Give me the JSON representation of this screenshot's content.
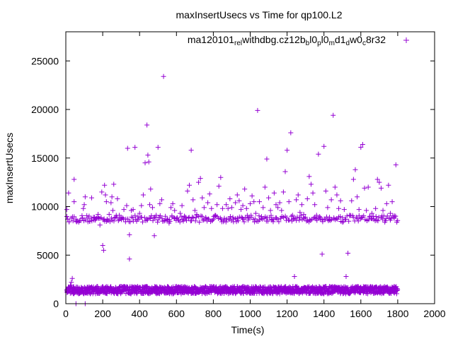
{
  "colors": {
    "series": "#9400d3",
    "axis": "#000000",
    "background": "#ffffff"
  },
  "chart_data": {
    "type": "scatter",
    "title": "maxInsertUsecs vs Time for qp100.L2",
    "xlabel": "Time(s)",
    "ylabel": "maxInsertUsecs",
    "xlim": [
      0,
      2000
    ],
    "ylim": [
      0,
      28000
    ],
    "xticks": [
      0,
      200,
      400,
      600,
      800,
      1000,
      1200,
      1400,
      1600,
      1800,
      2000
    ],
    "yticks": [
      0,
      5000,
      10000,
      15000,
      20000,
      25000
    ],
    "grid": false,
    "legend_position": "top-right",
    "marker": "plus",
    "series": [
      {
        "name": "ma120101_rel_withdbg.cz12b_bl0_pl0_md1_dw0_c8r32",
        "legend_parts": [
          {
            "t": "ma120101",
            "s": "n"
          },
          {
            "t": "rel",
            "s": "sub"
          },
          {
            "t": "withdbg.cz12b",
            "s": "n"
          },
          {
            "t": "b",
            "s": "sub"
          },
          {
            "t": "l0",
            "s": "n"
          },
          {
            "t": "p",
            "s": "sub"
          },
          {
            "t": "l0",
            "s": "n"
          },
          {
            "t": "m",
            "s": "sub"
          },
          {
            "t": "d1",
            "s": "n"
          },
          {
            "t": "d",
            "s": "sub"
          },
          {
            "t": "w0",
            "s": "n"
          },
          {
            "t": "c",
            "s": "sub"
          },
          {
            "t": "8r32",
            "s": "n"
          }
        ],
        "points": [
          [
            5,
            1450
          ],
          [
            5,
            9700
          ],
          [
            10,
            8700
          ],
          [
            15,
            11400
          ],
          [
            25,
            1900
          ],
          [
            30,
            2200
          ],
          [
            35,
            2600
          ],
          [
            40,
            1050
          ],
          [
            45,
            12800
          ],
          [
            45,
            10500
          ],
          [
            55,
            8700
          ],
          [
            55,
            0
          ],
          [
            70,
            8400
          ],
          [
            90,
            8800
          ],
          [
            95,
            9800
          ],
          [
            100,
            10200
          ],
          [
            105,
            11000
          ],
          [
            105,
            0
          ],
          [
            120,
            8800
          ],
          [
            130,
            8500
          ],
          [
            140,
            10900
          ],
          [
            150,
            8900
          ],
          [
            160,
            8600
          ],
          [
            175,
            9200
          ],
          [
            185,
            8100
          ],
          [
            195,
            11500
          ],
          [
            200,
            6000
          ],
          [
            205,
            5500
          ],
          [
            210,
            12200
          ],
          [
            215,
            11200
          ],
          [
            220,
            10500
          ],
          [
            225,
            8600
          ],
          [
            235,
            9200
          ],
          [
            245,
            10400
          ],
          [
            250,
            11000
          ],
          [
            255,
            9600
          ],
          [
            260,
            12300
          ],
          [
            270,
            8900
          ],
          [
            280,
            10800
          ],
          [
            290,
            9100
          ],
          [
            300,
            8900
          ],
          [
            315,
            9700
          ],
          [
            330,
            10100
          ],
          [
            335,
            16000
          ],
          [
            345,
            4600
          ],
          [
            345,
            7100
          ],
          [
            355,
            9600
          ],
          [
            365,
            9700
          ],
          [
            375,
            16100
          ],
          [
            390,
            8700
          ],
          [
            400,
            9300
          ],
          [
            410,
            10100
          ],
          [
            420,
            11200
          ],
          [
            430,
            14500
          ],
          [
            440,
            18400
          ],
          [
            445,
            15300
          ],
          [
            450,
            14600
          ],
          [
            455,
            10200
          ],
          [
            460,
            11800
          ],
          [
            470,
            9900
          ],
          [
            480,
            7000
          ],
          [
            490,
            9100
          ],
          [
            500,
            16100
          ],
          [
            510,
            10300
          ],
          [
            520,
            10700
          ],
          [
            530,
            23400
          ],
          [
            540,
            9000
          ],
          [
            550,
            8700
          ],
          [
            560,
            8300
          ],
          [
            570,
            9900
          ],
          [
            580,
            10300
          ],
          [
            590,
            9600
          ],
          [
            600,
            8800
          ],
          [
            610,
            8600
          ],
          [
            620,
            9300
          ],
          [
            630,
            10100
          ],
          [
            640,
            8700
          ],
          [
            650,
            8800
          ],
          [
            660,
            11600
          ],
          [
            670,
            12200
          ],
          [
            680,
            15800
          ],
          [
            690,
            10700
          ],
          [
            700,
            9600
          ],
          [
            710,
            9200
          ],
          [
            720,
            12500
          ],
          [
            730,
            12900
          ],
          [
            740,
            10900
          ],
          [
            750,
            9900
          ],
          [
            760,
            8800
          ],
          [
            770,
            10400
          ],
          [
            780,
            11300
          ],
          [
            790,
            9800
          ],
          [
            800,
            8700
          ],
          [
            810,
            9100
          ],
          [
            820,
            10200
          ],
          [
            830,
            12100
          ],
          [
            840,
            13000
          ],
          [
            850,
            9800
          ],
          [
            860,
            8800
          ],
          [
            870,
            10200
          ],
          [
            880,
            9800
          ],
          [
            890,
            10800
          ],
          [
            900,
            9900
          ],
          [
            910,
            8700
          ],
          [
            920,
            10400
          ],
          [
            930,
            11200
          ],
          [
            940,
            10600
          ],
          [
            950,
            9700
          ],
          [
            960,
            10100
          ],
          [
            970,
            11800
          ],
          [
            980,
            9800
          ],
          [
            990,
            8800
          ],
          [
            1000,
            10300
          ],
          [
            1010,
            11100
          ],
          [
            1020,
            10500
          ],
          [
            1030,
            9300
          ],
          [
            1040,
            19900
          ],
          [
            1050,
            10500
          ],
          [
            1060,
            8800
          ],
          [
            1070,
            9900
          ],
          [
            1080,
            12000
          ],
          [
            1090,
            14900
          ],
          [
            1100,
            10900
          ],
          [
            1110,
            9600
          ],
          [
            1120,
            8700
          ],
          [
            1130,
            11400
          ],
          [
            1140,
            10200
          ],
          [
            1150,
            9900
          ],
          [
            1160,
            10400
          ],
          [
            1170,
            9600
          ],
          [
            1180,
            11500
          ],
          [
            1190,
            13600
          ],
          [
            1200,
            15800
          ],
          [
            1210,
            10500
          ],
          [
            1220,
            17600
          ],
          [
            1230,
            9100
          ],
          [
            1240,
            2800
          ],
          [
            1250,
            10700
          ],
          [
            1260,
            11200
          ],
          [
            1270,
            9400
          ],
          [
            1280,
            10200
          ],
          [
            1290,
            9200
          ],
          [
            1300,
            8900
          ],
          [
            1310,
            10800
          ],
          [
            1320,
            13100
          ],
          [
            1330,
            12300
          ],
          [
            1340,
            11400
          ],
          [
            1350,
            10200
          ],
          [
            1360,
            9100
          ],
          [
            1370,
            15400
          ],
          [
            1380,
            8700
          ],
          [
            1390,
            5100
          ],
          [
            1400,
            16200
          ],
          [
            1410,
            11600
          ],
          [
            1420,
            9900
          ],
          [
            1430,
            8900
          ],
          [
            1440,
            10700
          ],
          [
            1450,
            19400
          ],
          [
            1460,
            12000
          ],
          [
            1470,
            11200
          ],
          [
            1480,
            9800
          ],
          [
            1490,
            10600
          ],
          [
            1500,
            8400
          ],
          [
            1510,
            9700
          ],
          [
            1520,
            2800
          ],
          [
            1530,
            5200
          ],
          [
            1540,
            9100
          ],
          [
            1550,
            10600
          ],
          [
            1560,
            12800
          ],
          [
            1570,
            13800
          ],
          [
            1580,
            11000
          ],
          [
            1590,
            9700
          ],
          [
            1600,
            16100
          ],
          [
            1610,
            16400
          ],
          [
            1620,
            11900
          ],
          [
            1630,
            9600
          ],
          [
            1640,
            12000
          ],
          [
            1650,
            9000
          ],
          [
            1660,
            9300
          ],
          [
            1670,
            8700
          ],
          [
            1680,
            9800
          ],
          [
            1690,
            12800
          ],
          [
            1700,
            12500
          ],
          [
            1710,
            11900
          ],
          [
            1720,
            9600
          ],
          [
            1730,
            8400
          ],
          [
            1740,
            10300
          ],
          [
            1750,
            12200
          ],
          [
            1760,
            9300
          ],
          [
            1770,
            10500
          ],
          [
            1780,
            8900
          ],
          [
            1790,
            14300
          ],
          [
            1795,
            8400
          ]
        ]
      }
    ],
    "dense_bands": [
      {
        "x_range": [
          5,
          1800
        ],
        "y_center": 8750,
        "y_spread": 350,
        "count": 280
      },
      {
        "x_range": [
          5,
          1800
        ],
        "y_center": 1400,
        "y_spread": 380,
        "count": 1400
      }
    ]
  }
}
